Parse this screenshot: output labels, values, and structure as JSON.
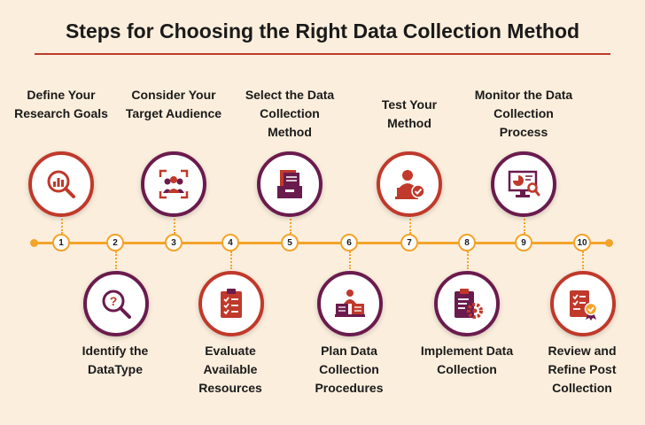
{
  "title": "Steps for Choosing the Right Data Collection Method",
  "colors": {
    "red": "#c0392b",
    "purple": "#6a1b4d",
    "orange": "#f4a32a",
    "background": "#fbeedd"
  },
  "steps": [
    {
      "number": "1",
      "label": "Define Your Research Goals",
      "icon": "search-chart-icon"
    },
    {
      "number": "2",
      "label": "Identify the DataType",
      "icon": "question-magnifier-icon"
    },
    {
      "number": "3",
      "label": "Consider Your Target Audience",
      "icon": "audience-target-icon"
    },
    {
      "number": "4",
      "label": "Evaluate Available Resources",
      "icon": "clipboard-checklist-icon"
    },
    {
      "number": "5",
      "label": "Select the Data Collection Method",
      "icon": "file-drawer-icon"
    },
    {
      "number": "6",
      "label": "Plan Data Collection Procedures",
      "icon": "planning-person-icon"
    },
    {
      "number": "7",
      "label": "Test Your Method",
      "icon": "user-laptop-check-icon"
    },
    {
      "number": "8",
      "label": "Implement Data Collection",
      "icon": "clipboard-gear-icon"
    },
    {
      "number": "9",
      "label": "Monitor the Data Collection Process",
      "icon": "monitor-chart-icon"
    },
    {
      "number": "10",
      "label": "Review and Refine Post Collection",
      "icon": "checklist-badge-icon"
    }
  ]
}
